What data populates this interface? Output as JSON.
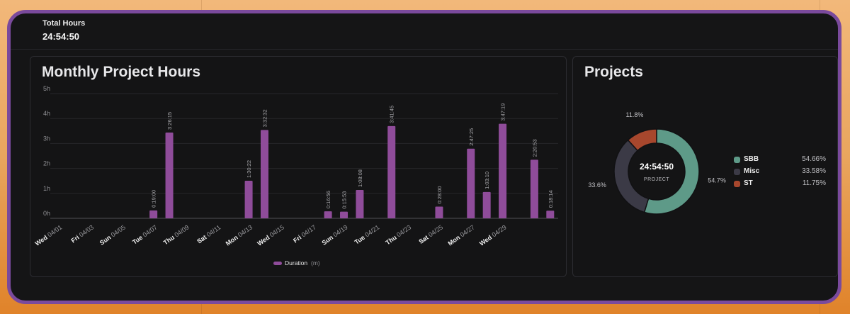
{
  "header": {
    "total_label": "Total Hours",
    "total_value": "24:54:50"
  },
  "monthly": {
    "title": "Monthly Project Hours",
    "legend_label": "Duration",
    "legend_unit": "(m)",
    "bar_color": "#8f4c9a"
  },
  "projects": {
    "title": "Projects",
    "center_value": "24:54:50",
    "center_label": "PROJECT",
    "items": [
      {
        "name": "SBB",
        "percent_label": "54.66%",
        "slice_label": "54.7%",
        "value": 54.66,
        "color": "#5e9a88"
      },
      {
        "name": "Misc",
        "percent_label": "33.58%",
        "slice_label": "33.6%",
        "value": 33.58,
        "color": "#3b3a46"
      },
      {
        "name": "ST",
        "percent_label": "11.75%",
        "slice_label": "11.8%",
        "value": 11.75,
        "color": "#a7472d"
      }
    ]
  },
  "chart_data": [
    {
      "type": "bar",
      "title": "Monthly Project Hours",
      "ylim": [
        0,
        5
      ],
      "yticks": [
        "0h",
        "1h",
        "2h",
        "3h",
        "4h",
        "5h"
      ],
      "grid": true,
      "legend": "bottom",
      "categories": [
        "Wed 04/01",
        "Fri 04/03",
        "Sun 04/05",
        "Tue 04/07",
        "Thu 04/09",
        "Sat 04/11",
        "Mon 04/13",
        "Wed 04/15",
        "Fri 04/17",
        "Sun 04/19",
        "Tue 04/21",
        "Thu 04/23",
        "Sat 04/25",
        "Mon 04/27",
        "Wed 04/29"
      ],
      "series": [
        {
          "name": "Duration",
          "bars": [
            {
              "index": 6,
              "value": 0.317,
              "label": "0:19:00"
            },
            {
              "index": 7,
              "value": 3.438,
              "label": "3:26:15"
            },
            {
              "index": 12,
              "value": 1.506,
              "label": "1:30:22"
            },
            {
              "index": 13,
              "value": 3.542,
              "label": "3:32:32"
            },
            {
              "index": 17,
              "value": 0.282,
              "label": "0:16:56"
            },
            {
              "index": 18,
              "value": 0.265,
              "label": "0:15:53"
            },
            {
              "index": 19,
              "value": 1.135,
              "label": "1:08:08"
            },
            {
              "index": 21,
              "value": 3.696,
              "label": "3:41:45"
            },
            {
              "index": 24,
              "value": 0.467,
              "label": "0:28:00"
            },
            {
              "index": 26,
              "value": 2.79,
              "label": "2:47:25"
            },
            {
              "index": 27,
              "value": 1.053,
              "label": "1:03:10"
            },
            {
              "index": 28,
              "value": 3.789,
              "label": "3:47:19"
            },
            {
              "index": 30,
              "value": 2.348,
              "label": "2:20:53"
            },
            {
              "index": 31,
              "value": 0.304,
              "label": "0:18:14"
            }
          ]
        }
      ]
    },
    {
      "type": "pie",
      "title": "Projects",
      "legend": "right",
      "labels": [
        "SBB",
        "Misc",
        "ST"
      ],
      "values": [
        54.66,
        33.58,
        11.75
      ]
    }
  ]
}
